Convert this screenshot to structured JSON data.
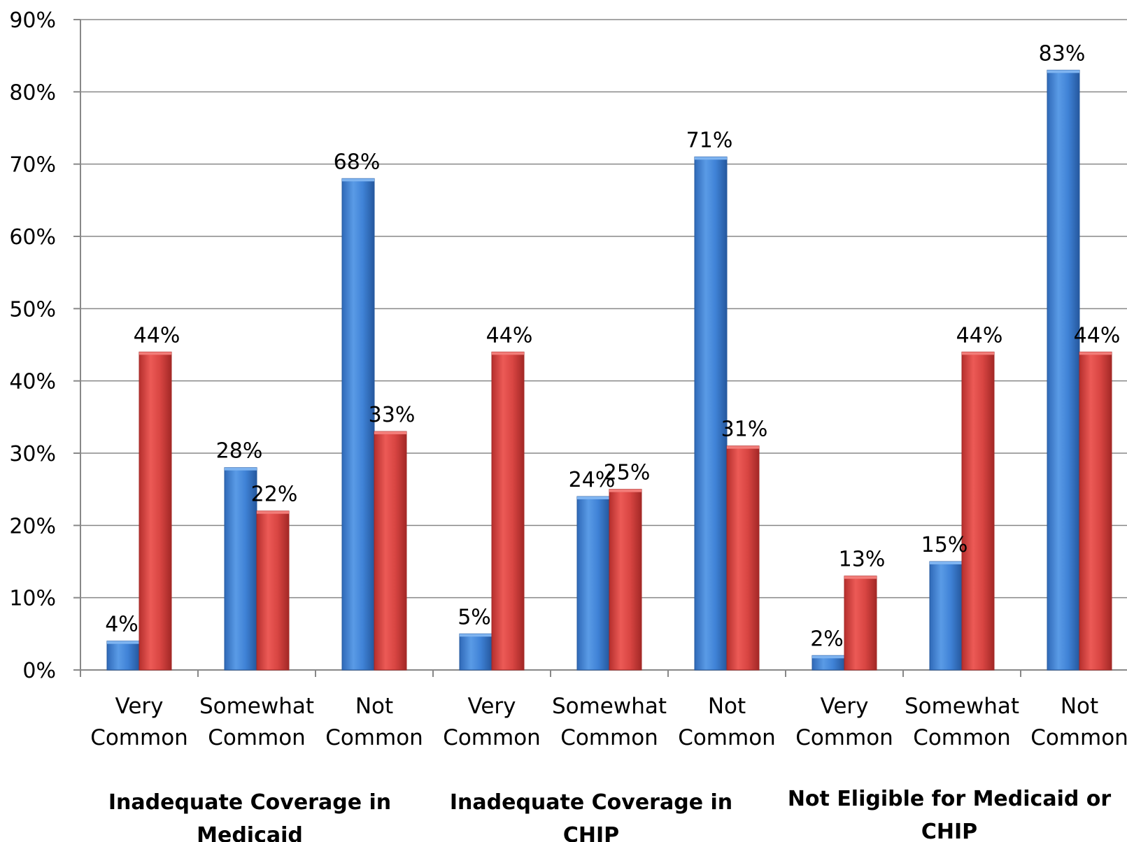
{
  "chart_data": {
    "type": "bar",
    "ylim": [
      0,
      90
    ],
    "yticks": [
      "0%",
      "10%",
      "20%",
      "30%",
      "40%",
      "50%",
      "60%",
      "70%",
      "80%",
      "90%"
    ],
    "grid": true,
    "legend": "none",
    "categories": [
      [
        "Very",
        "Common"
      ],
      [
        "Somewhat",
        "Common"
      ],
      [
        "Not",
        "Common"
      ],
      [
        "Very",
        "Common"
      ],
      [
        "Somewhat",
        "Common"
      ],
      [
        "Not",
        "Common"
      ],
      [
        "Very",
        "Common"
      ],
      [
        "Somewhat",
        "Common"
      ],
      [
        "Not",
        "Common"
      ]
    ],
    "groups": [
      [
        "Inadequate  Coverage in",
        "Medicaid"
      ],
      [
        "Inadequate Coverage in",
        "CHIP"
      ],
      [
        "Not Eligible for Medicaid or",
        "CHIP"
      ]
    ],
    "series": [
      {
        "color": "#3f7fcf",
        "values": [
          4,
          28,
          68,
          5,
          24,
          71,
          2,
          15,
          83
        ],
        "labels": [
          "4%",
          "28%",
          "68%",
          "5%",
          "24%",
          "71%",
          "2%",
          "15%",
          "83%"
        ]
      },
      {
        "color": "#d03c3a",
        "values": [
          44,
          22,
          33,
          44,
          25,
          31,
          13,
          44,
          44
        ],
        "labels": [
          "44%",
          "22%",
          "33%",
          "44%",
          "25%",
          "31%",
          "13%",
          "44%",
          "44%"
        ]
      }
    ]
  }
}
